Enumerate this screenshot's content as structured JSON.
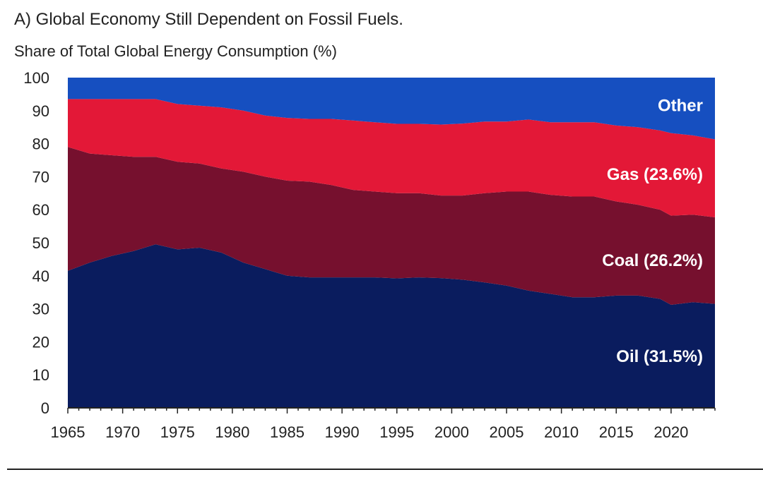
{
  "chart_data": {
    "type": "area",
    "stacked": true,
    "title": "A) Global Economy Still Dependent on Fossil Fuels.",
    "ylabel": "Share of Total Global Energy Consumption (%)",
    "xlabel": "",
    "ylim": [
      0,
      100
    ],
    "xlim": [
      1965,
      2024
    ],
    "y_ticks": [
      0,
      10,
      20,
      30,
      40,
      50,
      60,
      70,
      80,
      90,
      100
    ],
    "x_ticks": [
      1965,
      1970,
      1975,
      1980,
      1985,
      1990,
      1995,
      2000,
      2005,
      2010,
      2015,
      2020
    ],
    "grid": false,
    "legend": "labels placed inside areas at right",
    "x": [
      1965,
      1967,
      1969,
      1971,
      1973,
      1975,
      1977,
      1979,
      1981,
      1983,
      1985,
      1987,
      1989,
      1991,
      1993,
      1995,
      1997,
      1999,
      2001,
      2003,
      2005,
      2007,
      2009,
      2011,
      2013,
      2015,
      2017,
      2019,
      2020,
      2022,
      2024
    ],
    "series": [
      {
        "name": "Oil (31.5%)",
        "color": "#0a1c5e",
        "values": [
          41.5,
          44,
          46,
          47.5,
          49.5,
          48,
          48.5,
          47,
          44,
          42,
          40,
          39.5,
          39.5,
          39.5,
          39.5,
          39.2,
          39.5,
          39.3,
          38.8,
          38,
          37,
          35.5,
          34.5,
          33.5,
          33.5,
          34,
          34,
          33,
          31.2,
          32,
          31.5
        ]
      },
      {
        "name": "Coal (26.2%)",
        "color": "#76102e",
        "values": [
          37.5,
          33,
          30.5,
          28.5,
          26.5,
          26.5,
          25.5,
          25.5,
          27.5,
          28,
          28.8,
          29,
          28,
          26.5,
          26,
          25.8,
          25.5,
          25,
          25.5,
          27,
          28.5,
          30,
          30,
          30.5,
          30.5,
          28.5,
          27.5,
          27,
          27,
          26.5,
          26.2
        ]
      },
      {
        "name": "Gas (23.6%)",
        "color": "#e31837",
        "values": [
          14.5,
          16.5,
          17,
          17.5,
          17.5,
          17.5,
          17.5,
          18.5,
          18.5,
          18.5,
          19,
          19,
          20,
          21,
          21,
          21,
          21,
          21.5,
          21.8,
          21.7,
          21.2,
          21.8,
          22,
          22.5,
          22.5,
          23,
          23.5,
          24,
          25,
          24,
          23.6
        ]
      },
      {
        "name": "Other",
        "color": "#164fc0",
        "values": [
          6.5,
          6.5,
          6.5,
          6.5,
          6.5,
          8,
          8.5,
          9,
          10,
          11.5,
          12.2,
          12.5,
          12.5,
          13,
          13.5,
          14,
          14,
          14.2,
          13.9,
          13.3,
          13.3,
          12.7,
          13.5,
          13.5,
          13.5,
          14.5,
          15,
          16,
          16.8,
          17.5,
          18.7
        ]
      }
    ]
  }
}
